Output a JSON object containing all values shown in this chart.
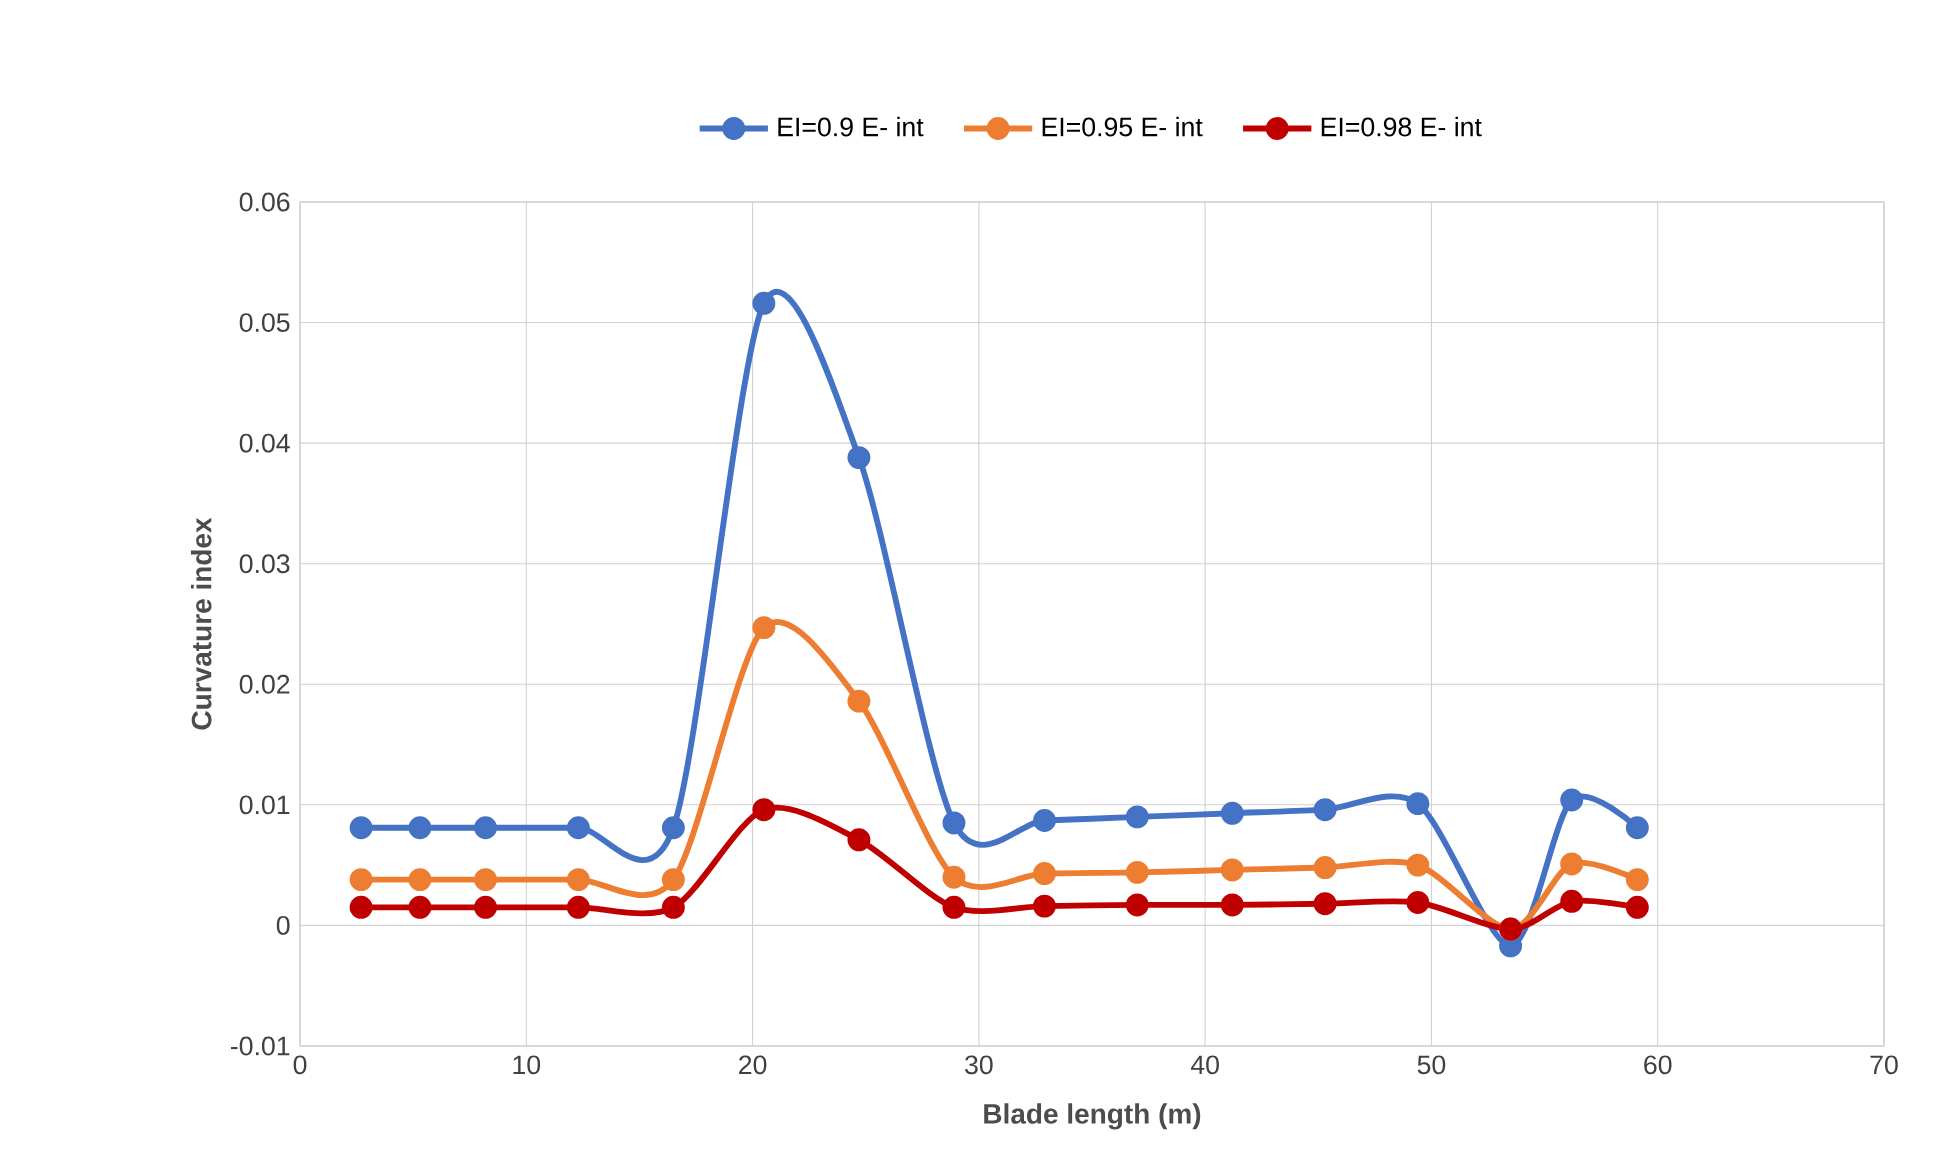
{
  "chart_data": {
    "type": "line",
    "xlabel": "Blade length (m)",
    "ylabel": "Curvature index",
    "x": [
      2.7,
      5.3,
      8.2,
      12.3,
      16.5,
      20.5,
      24.7,
      28.9,
      32.9,
      37.0,
      41.2,
      45.3,
      49.4,
      53.5,
      56.2,
      59.1
    ],
    "series": [
      {
        "name": "EI=0.9 E- int",
        "color": "#4472c4",
        "values": [
          0.0081,
          0.0081,
          0.0081,
          0.0081,
          0.0081,
          0.0516,
          0.0388,
          0.0085,
          0.0087,
          0.009,
          0.0093,
          0.0096,
          0.0101,
          -0.0017,
          0.0104,
          0.0081
        ]
      },
      {
        "name": "EI=0.95 E- int",
        "color": "#ed7d31",
        "values": [
          0.0038,
          0.0038,
          0.0038,
          0.0038,
          0.0038,
          0.0247,
          0.0186,
          0.004,
          0.0043,
          0.0044,
          0.0046,
          0.0048,
          0.005,
          -0.0003,
          0.0051,
          0.0038
        ]
      },
      {
        "name": "EI=0.98 E- int",
        "color": "#c00000",
        "values": [
          0.0015,
          0.0015,
          0.0015,
          0.0015,
          0.0015,
          0.0096,
          0.0071,
          0.0015,
          0.0016,
          0.0017,
          0.0017,
          0.0018,
          0.0019,
          -0.0003,
          0.002,
          0.0015
        ]
      }
    ],
    "xlim": [
      0,
      70
    ],
    "xticks": [
      0,
      10,
      20,
      30,
      40,
      50,
      60,
      70
    ],
    "ylim": [
      -0.01,
      0.06
    ],
    "yticks": [
      -0.01,
      0,
      0.01,
      0.02,
      0.03,
      0.04,
      0.05,
      0.06
    ],
    "grid": true,
    "legend": "top",
    "marker": "circle",
    "line_style": "solid"
  }
}
